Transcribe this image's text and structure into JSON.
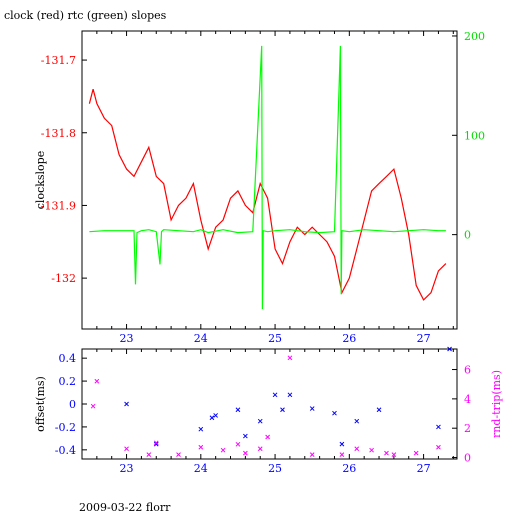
{
  "title": "clock (red) rtc (green) slopes",
  "footer": "2009-03-22 florr",
  "colors": {
    "clock": "#ff0000",
    "rtc": "#00ff00",
    "offset": "#0000ff",
    "rndtrip": "#ff00ff",
    "axis": "#000000"
  },
  "chart_data": [
    {
      "type": "line",
      "title": "clock (red) rtc (green) slopes",
      "ylabel": "clockslope",
      "xlim": [
        22.4,
        27.45
      ],
      "ylim": [
        -132.07,
        -131.66
      ],
      "ylim_right": [
        -95,
        205
      ],
      "x_ticks": [
        "23",
        "24",
        "25",
        "26",
        "27"
      ],
      "y_ticks_left": [
        "-131.7",
        "-131.8",
        "-131.9",
        "-132"
      ],
      "y_ticks_right": [
        "0",
        "100",
        "200"
      ],
      "grid": false,
      "series": [
        {
          "axis": "left",
          "x": [
            22.5,
            22.55,
            22.6,
            22.7,
            22.8,
            22.9,
            23.0,
            23.1,
            23.2,
            23.3,
            23.4,
            23.5,
            23.6,
            23.7,
            23.8,
            23.9,
            24.0,
            24.1,
            24.2,
            24.3,
            24.4,
            24.5,
            24.6,
            24.7,
            24.8,
            24.9,
            25.0,
            25.1,
            25.2,
            25.3,
            25.4,
            25.5,
            25.6,
            25.7,
            25.8,
            25.9,
            26.0,
            26.1,
            26.2,
            26.3,
            26.4,
            26.5,
            26.6,
            26.7,
            26.8,
            26.9,
            27.0,
            27.1,
            27.2,
            27.3
          ],
          "values": [
            -131.76,
            -131.74,
            -131.76,
            -131.78,
            -131.79,
            -131.83,
            -131.85,
            -131.86,
            -131.84,
            -131.82,
            -131.86,
            -131.87,
            -131.92,
            -131.9,
            -131.89,
            -131.87,
            -131.92,
            -131.96,
            -131.93,
            -131.92,
            -131.89,
            -131.88,
            -131.9,
            -131.91,
            -131.87,
            -131.89,
            -131.96,
            -131.98,
            -131.95,
            -131.93,
            -131.94,
            -131.93,
            -131.94,
            -131.95,
            -131.97,
            -132.02,
            -132.0,
            -131.96,
            -131.92,
            -131.88,
            -131.87,
            -131.86,
            -131.85,
            -131.89,
            -131.94,
            -132.01,
            -132.03,
            -132.02,
            -131.99,
            -131.98
          ]
        },
        {
          "axis": "right",
          "x": [
            22.5,
            22.7,
            23.0,
            23.1,
            23.12,
            23.14,
            23.2,
            23.3,
            23.4,
            23.45,
            23.47,
            23.5,
            23.7,
            23.9,
            24.0,
            24.1,
            24.3,
            24.5,
            24.7,
            24.82,
            24.83,
            24.84,
            24.9,
            25.0,
            25.2,
            25.4,
            25.6,
            25.8,
            25.88,
            25.89,
            25.9,
            26.0,
            26.2,
            26.4,
            26.6,
            26.8,
            27.0,
            27.2,
            27.3
          ],
          "values": [
            3,
            4,
            4,
            4,
            -50,
            2,
            4,
            5,
            3,
            -30,
            3,
            5,
            4,
            3,
            5,
            2,
            5,
            2,
            3,
            190,
            -75,
            4,
            3,
            4,
            5,
            3,
            2,
            3,
            190,
            -60,
            4,
            3,
            5,
            4,
            3,
            4,
            5,
            4,
            4
          ]
        }
      ]
    },
    {
      "type": "scatter",
      "ylabel": "offset(ms)",
      "ylabel_right": "rnd-trip(ms)",
      "xlim": [
        22.4,
        27.45
      ],
      "ylim": [
        -0.48,
        0.48
      ],
      "ylim_right": [
        -0.1,
        7.4
      ],
      "x_ticks": [
        "23",
        "24",
        "25",
        "26",
        "27"
      ],
      "y_ticks_left": [
        "0.4",
        "0.2",
        "0",
        "-0.2",
        "-0.4"
      ],
      "y_ticks_right": [
        "6",
        "4",
        "2",
        "0"
      ],
      "grid": false,
      "series": [
        {
          "axis": "left",
          "x": [
            23.0,
            23.4,
            24.0,
            24.15,
            24.2,
            24.5,
            24.6,
            24.8,
            25.0,
            25.1,
            25.2,
            25.5,
            25.8,
            25.9,
            26.1,
            26.4,
            27.2,
            27.35
          ],
          "values": [
            0.0,
            -0.35,
            -0.22,
            -0.12,
            -0.1,
            -0.05,
            -0.28,
            -0.15,
            0.08,
            -0.05,
            0.08,
            -0.04,
            -0.08,
            -0.35,
            -0.15,
            -0.05,
            -0.2,
            0.48
          ]
        },
        {
          "axis": "right",
          "x": [
            22.55,
            22.6,
            23.0,
            23.3,
            23.4,
            23.7,
            24.0,
            24.3,
            24.5,
            24.6,
            24.8,
            24.9,
            25.2,
            25.5,
            25.9,
            26.1,
            26.3,
            26.5,
            26.6,
            26.9,
            27.2
          ],
          "values": [
            3.5,
            5.2,
            0.6,
            0.2,
            1.0,
            0.2,
            0.7,
            0.5,
            0.9,
            0.3,
            0.6,
            1.4,
            6.8,
            0.2,
            0.2,
            0.6,
            0.5,
            0.3,
            0.2,
            0.3,
            0.7
          ]
        }
      ]
    }
  ]
}
